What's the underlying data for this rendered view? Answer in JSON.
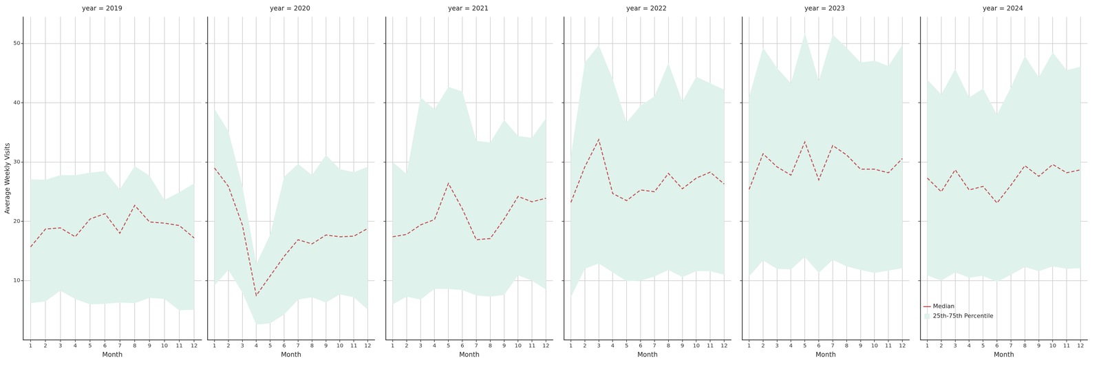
{
  "chart_data": [
    {
      "type": "line",
      "title": "year = 2019",
      "x_label": "Month",
      "y_label": "Average Weekly Visits",
      "categories": [
        1,
        2,
        3,
        4,
        5,
        6,
        7,
        8,
        9,
        10,
        11,
        12
      ],
      "ylim": [
        0,
        54.5
      ],
      "yticks": [
        10,
        20,
        30,
        40,
        50
      ],
      "grid": true,
      "series": [
        {
          "name": "Median",
          "color": "#c44e52",
          "line_style": "dashed",
          "values": [
            15.7,
            18.7,
            18.9,
            17.4,
            20.4,
            21.3,
            18.0,
            22.7,
            19.9,
            19.7,
            19.3,
            17.2
          ]
        },
        {
          "name": "25th-75th Percentile",
          "type": "area",
          "color": "#dff2ec",
          "lower": [
            6.2,
            6.5,
            8.3,
            6.9,
            6.0,
            6.1,
            6.3,
            6.2,
            7.1,
            6.9,
            5.0,
            5.1
          ],
          "upper": [
            27.1,
            27.0,
            27.8,
            27.8,
            28.2,
            28.5,
            25.4,
            29.3,
            27.7,
            23.6,
            24.9,
            26.4
          ]
        }
      ]
    },
    {
      "type": "line",
      "title": "year = 2020",
      "x_label": "Month",
      "tick_labels": "x",
      "categories": [
        1,
        2,
        3,
        4,
        5,
        6,
        7,
        8,
        9,
        10,
        11,
        12
      ],
      "ylim": [
        0,
        54.5
      ],
      "yticks": [
        10,
        20,
        30,
        40,
        50
      ],
      "grid": true,
      "series": [
        {
          "name": "Median",
          "color": "#c44e52",
          "line_style": "dashed",
          "values": [
            29.0,
            25.9,
            19.4,
            7.5,
            10.8,
            14.1,
            16.9,
            16.2,
            17.7,
            17.4,
            17.5,
            18.8
          ]
        },
        {
          "name": "25th-75th Percentile",
          "type": "area",
          "color": "#dff2ec",
          "lower": [
            9.2,
            11.8,
            8.0,
            2.6,
            2.8,
            4.3,
            6.8,
            7.2,
            6.3,
            7.7,
            7.2,
            5.1
          ],
          "upper": [
            39.0,
            35.2,
            26.0,
            12.8,
            17.8,
            27.5,
            29.7,
            27.8,
            31.2,
            28.8,
            28.3,
            29.2
          ]
        }
      ]
    },
    {
      "type": "line",
      "title": "year = 2021",
      "x_label": "Month",
      "tick_labels": "x",
      "categories": [
        1,
        2,
        3,
        4,
        5,
        6,
        7,
        8,
        9,
        10,
        11,
        12
      ],
      "ylim": [
        0,
        54.5
      ],
      "yticks": [
        10,
        20,
        30,
        40,
        50
      ],
      "grid": true,
      "series": [
        {
          "name": "Median",
          "color": "#c44e52",
          "line_style": "dashed",
          "values": [
            17.4,
            17.8,
            19.4,
            20.3,
            26.4,
            22.1,
            16.9,
            17.1,
            20.4,
            24.2,
            23.3,
            23.9
          ]
        },
        {
          "name": "25th-75th Percentile",
          "type": "area",
          "color": "#dff2ec",
          "lower": [
            6.0,
            7.3,
            6.8,
            8.6,
            8.6,
            8.4,
            7.5,
            7.3,
            7.6,
            10.9,
            10.0,
            8.5
          ],
          "upper": [
            30.0,
            28.0,
            40.9,
            38.9,
            42.7,
            41.9,
            33.6,
            33.3,
            37.1,
            34.4,
            34.1,
            37.4
          ]
        }
      ]
    },
    {
      "type": "line",
      "title": "year = 2022",
      "x_label": "Month",
      "tick_labels": "x",
      "categories": [
        1,
        2,
        3,
        4,
        5,
        6,
        7,
        8,
        9,
        10,
        11,
        12
      ],
      "ylim": [
        0,
        54.5
      ],
      "yticks": [
        10,
        20,
        30,
        40,
        50
      ],
      "grid": true,
      "series": [
        {
          "name": "Median",
          "color": "#c44e52",
          "line_style": "dashed",
          "values": [
            23.2,
            29.2,
            33.8,
            24.7,
            23.5,
            25.3,
            25.0,
            28.1,
            25.5,
            27.3,
            28.3,
            26.3
          ]
        },
        {
          "name": "25th-75th Percentile",
          "type": "area",
          "color": "#dff2ec",
          "lower": [
            7.2,
            12.0,
            12.9,
            11.4,
            9.9,
            10.0,
            10.7,
            11.8,
            10.6,
            11.6,
            11.6,
            11.0
          ],
          "upper": [
            31.0,
            46.8,
            49.7,
            44.0,
            36.7,
            39.5,
            41.1,
            46.7,
            40.2,
            44.4,
            43.3,
            42.2
          ]
        }
      ]
    },
    {
      "type": "line",
      "title": "year = 2023",
      "x_label": "Month",
      "tick_labels": "x",
      "categories": [
        1,
        2,
        3,
        4,
        5,
        6,
        7,
        8,
        9,
        10,
        11,
        12
      ],
      "ylim": [
        0,
        54.5
      ],
      "yticks": [
        10,
        20,
        30,
        40,
        50
      ],
      "grid": true,
      "series": [
        {
          "name": "Median",
          "color": "#c44e52",
          "line_style": "dashed",
          "values": [
            25.4,
            31.4,
            29.2,
            27.8,
            33.4,
            27.0,
            32.8,
            31.2,
            28.8,
            28.8,
            28.2,
            30.6
          ]
        },
        {
          "name": "25th-75th Percentile",
          "type": "area",
          "color": "#dff2ec",
          "lower": [
            10.7,
            13.4,
            12.0,
            11.9,
            14.0,
            11.3,
            13.5,
            12.4,
            11.8,
            11.3,
            11.7,
            12.1
          ],
          "upper": [
            41.0,
            49.3,
            45.9,
            43.3,
            51.8,
            43.7,
            51.5,
            49.3,
            46.8,
            47.1,
            46.2,
            49.8
          ]
        }
      ]
    },
    {
      "type": "line",
      "title": "year = 2024",
      "x_label": "Month",
      "tick_labels": "x",
      "legend": "upper right",
      "categories": [
        1,
        2,
        3,
        4,
        5,
        6,
        7,
        8,
        9,
        10,
        11,
        12
      ],
      "ylim": [
        0,
        54.5
      ],
      "yticks": [
        10,
        20,
        30,
        40,
        50
      ],
      "grid": true,
      "series": [
        {
          "name": "Median",
          "color": "#c44e52",
          "line_style": "dashed",
          "values": [
            27.3,
            25.0,
            28.7,
            25.3,
            25.9,
            23.1,
            26.1,
            29.4,
            27.6,
            29.6,
            28.2,
            28.7
          ]
        },
        {
          "name": "25th-75th Percentile",
          "type": "area",
          "color": "#dff2ec",
          "lower": [
            10.9,
            10.0,
            11.4,
            10.5,
            10.8,
            9.8,
            11.0,
            12.3,
            11.6,
            12.4,
            12.0,
            12.1
          ],
          "upper": [
            43.9,
            41.4,
            45.7,
            40.9,
            42.4,
            38.0,
            42.6,
            47.9,
            44.3,
            48.5,
            45.5,
            46.1
          ]
        }
      ]
    }
  ]
}
